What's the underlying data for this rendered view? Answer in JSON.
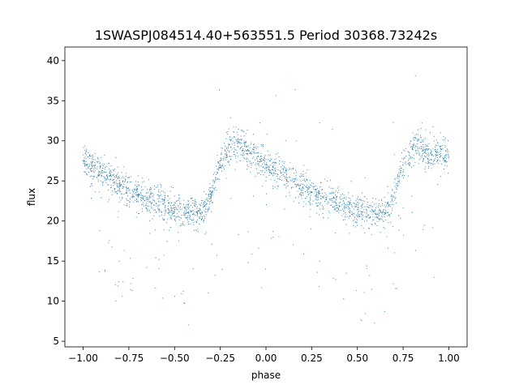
{
  "chart_data": {
    "type": "scatter",
    "title": "1SWASPJ084514.40+563551.5 Period 30368.73242s",
    "xlabel": "phase",
    "ylabel": "flux",
    "xlim": [
      -1.1,
      1.1
    ],
    "ylim": [
      4.3,
      41.7
    ],
    "x_ticks": [
      -1.0,
      -0.75,
      -0.5,
      -0.25,
      0.0,
      0.25,
      0.5,
      0.75,
      1.0
    ],
    "x_tick_labels": [
      "−1.00",
      "−0.75",
      "−0.50",
      "−0.25",
      "0.00",
      "0.25",
      "0.50",
      "0.75",
      "1.00"
    ],
    "y_ticks": [
      5,
      10,
      15,
      20,
      25,
      30,
      35,
      40
    ],
    "y_tick_labels": [
      "5",
      "10",
      "15",
      "20",
      "25",
      "30",
      "35",
      "40"
    ],
    "grid": false,
    "legend": "none",
    "marker_color": "#1f77b4",
    "series": [
      {
        "x": [
          -1.0,
          -0.95,
          -0.9,
          -0.85,
          -0.8,
          -0.75,
          -0.7,
          -0.65,
          -0.6,
          -0.55,
          -0.5,
          -0.45,
          -0.4,
          -0.35,
          -0.3,
          -0.25,
          -0.2,
          -0.15,
          -0.1,
          -0.05,
          0.0,
          0.05,
          0.1,
          0.15,
          0.2,
          0.25,
          0.3,
          0.35,
          0.4,
          0.45,
          0.5,
          0.55,
          0.6,
          0.65,
          0.7,
          0.75,
          0.8,
          0.85,
          0.9,
          0.95,
          1.0
        ],
        "y": [
          27.5,
          26.8,
          26.0,
          25.2,
          24.4,
          23.8,
          23.2,
          22.7,
          22.2,
          21.8,
          21.4,
          21.0,
          20.8,
          21.0,
          23.0,
          27.5,
          29.5,
          29.8,
          28.8,
          27.8,
          27.0,
          26.3,
          25.6,
          24.9,
          24.2,
          23.6,
          23.1,
          22.6,
          22.2,
          21.8,
          21.4,
          21.1,
          20.9,
          21.0,
          23.0,
          27.0,
          29.0,
          29.0,
          28.5,
          28.3,
          28.0
        ]
      }
    ]
  }
}
